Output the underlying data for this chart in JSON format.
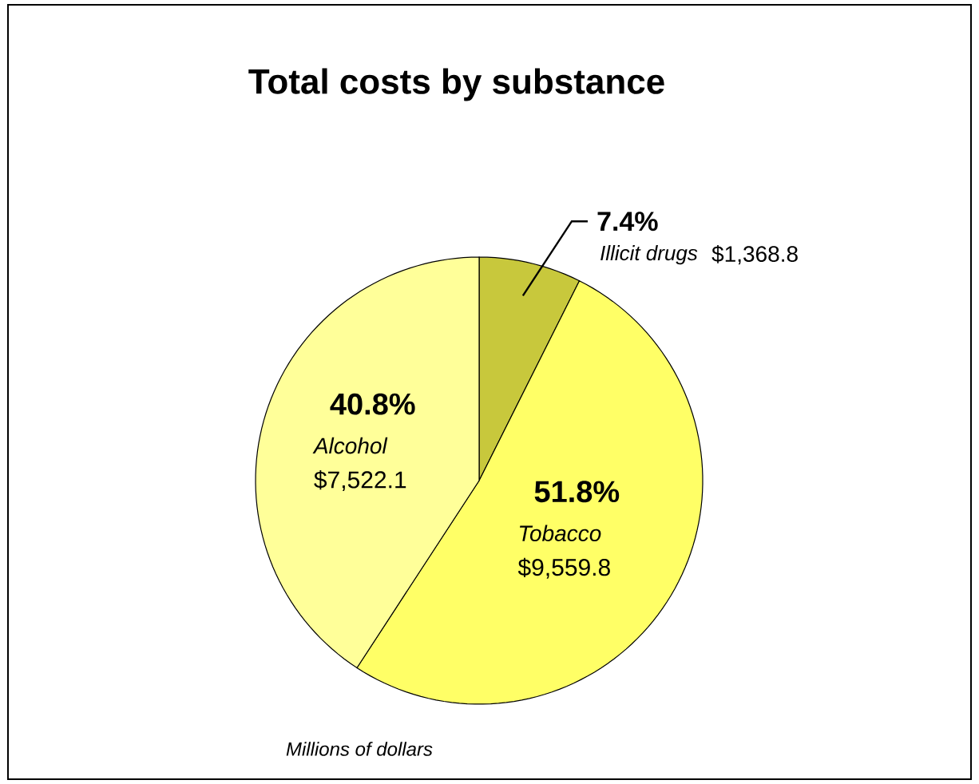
{
  "chart_data": {
    "type": "pie",
    "title": "Total costs by substance",
    "categories": [
      "Illicit drugs",
      "Tobacco",
      "Alcohol"
    ],
    "values": [
      7.4,
      51.8,
      40.8
    ],
    "colors": [
      "#c8c83c",
      "#ffff66",
      "#ffff99"
    ],
    "value_labels": [
      "7.4%",
      "51.8%",
      "40.8%"
    ],
    "annotations": [
      {
        "text": "$1,368.8",
        "x": "Illicit drugs"
      },
      {
        "text": "$9,559.8",
        "x": "Tobacco"
      },
      {
        "text": "$7,522.1",
        "x": "Alcohol"
      },
      "Millions of dollars"
    ]
  }
}
